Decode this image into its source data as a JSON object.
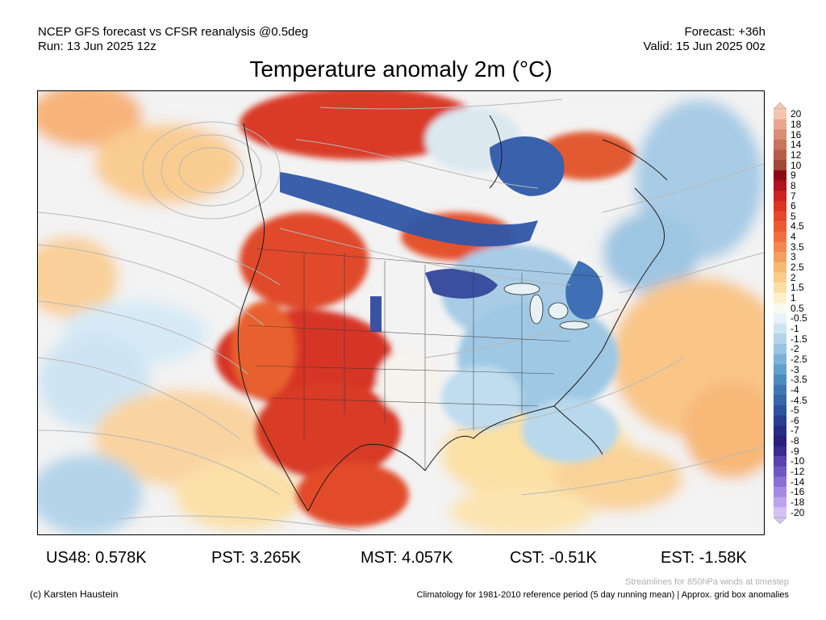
{
  "header": {
    "left_line1": "NCEP GFS forecast vs CFSR reanalysis @0.5deg",
    "left_line2": "Run: 13 Jun 2025 12z",
    "right_line1": "Forecast: +36h",
    "right_line2": "Valid: 15 Jun 2025 00z"
  },
  "title": "Temperature anomaly 2m (°C)",
  "colorbar": {
    "labels": [
      "20",
      "18",
      "16",
      "14",
      "12",
      "10",
      "9",
      "8",
      "7",
      "6",
      "5",
      "4.5",
      "4",
      "3.5",
      "3",
      "2.5",
      "2",
      "1.5",
      "1",
      "0.5",
      "-0.5",
      "-1",
      "-1.5",
      "-2",
      "-2.5",
      "-3",
      "-3.5",
      "-4",
      "-4.5",
      "-5",
      "-6",
      "-7",
      "-8",
      "-9",
      "-10",
      "-12",
      "-14",
      "-16",
      "-18",
      "-20"
    ],
    "colors": [
      "#f4c6b0",
      "#e8a88f",
      "#d98d74",
      "#c8735c",
      "#b65c48",
      "#a34837",
      "#8c0a10",
      "#b0141c",
      "#cc2222",
      "#dd3322",
      "#e5472a",
      "#ec5a30",
      "#f07040",
      "#f28850",
      "#f5a060",
      "#f7b872",
      "#f9cc88",
      "#fbe0a4",
      "#fdf0c8",
      "#fafaf2",
      "#e8f2f8",
      "#cfe4f2",
      "#b4d4ea",
      "#98c4e2",
      "#7cb2d8",
      "#62a0cc",
      "#4e8cc0",
      "#3e78b4",
      "#3466a8",
      "#2c549c",
      "#283e90",
      "#262c84",
      "#2a1f78",
      "#3c2a90",
      "#5a42b0",
      "#7058c4",
      "#8a70d4",
      "#a48ae2",
      "#bca4ec",
      "#d4c2f4"
    ]
  },
  "stats": [
    {
      "label": "US48:",
      "value": "0.578K"
    },
    {
      "label": "PST:",
      "value": "3.265K"
    },
    {
      "label": "MST:",
      "value": "4.057K"
    },
    {
      "label": "CST:",
      "value": "-0.51K"
    },
    {
      "label": "EST:",
      "value": "-1.58K"
    }
  ],
  "footer": {
    "streamlines_note": "Streamlines for 850hPa winds at timestep",
    "copyright": "(c) Karsten Haustein",
    "climatology_note": "Climatology for 1981-2010 reference period (5 day running mean) | Approx. grid box anomalies"
  }
}
